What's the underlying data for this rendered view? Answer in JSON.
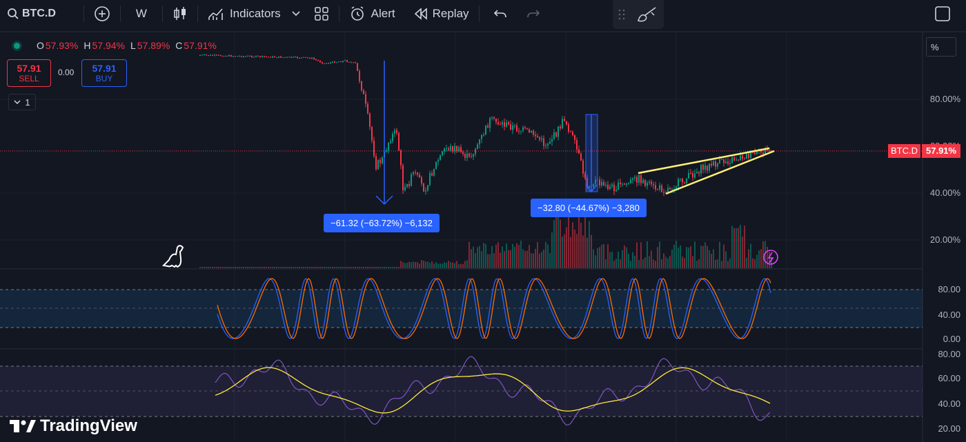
{
  "toolbar": {
    "symbol": "BTC.D",
    "interval": "W",
    "indicators_label": "Indicators",
    "alert_label": "Alert",
    "replay_label": "Replay"
  },
  "legend": {
    "open_key": "O",
    "open": "57.93%",
    "high_key": "H",
    "high": "57.94%",
    "low_key": "L",
    "low": "57.89%",
    "close_key": "C",
    "close": "57.91%"
  },
  "trade": {
    "sell_price": "57.91",
    "sell_label": "SELL",
    "spread": "0.00",
    "buy_price": "57.91",
    "buy_label": "BUY",
    "quantity": "1"
  },
  "scale_mode": "%",
  "price_axis": [
    "80.00%",
    "60.00%",
    "40.00%",
    "20.00%"
  ],
  "current_price": {
    "symbol": "BTC.D",
    "value": "57.91%"
  },
  "measures": [
    {
      "text": "−61.32 (−63.72%) −6,132"
    },
    {
      "text": "−32.80 (−44.67%) −3,280"
    }
  ],
  "stoch_axis": [
    "80.00",
    "40.00",
    "0.00"
  ],
  "rsi_axis": [
    "80.00",
    "60.00",
    "40.00",
    "20.00"
  ],
  "brand": "TradingView",
  "colors": {
    "bg": "#131722",
    "up": "#089981",
    "down": "#f23645",
    "blue": "#2962ff",
    "orange": "#ff6d00",
    "purple": "#7e57c2",
    "yellow": "#ffeb3b"
  }
}
